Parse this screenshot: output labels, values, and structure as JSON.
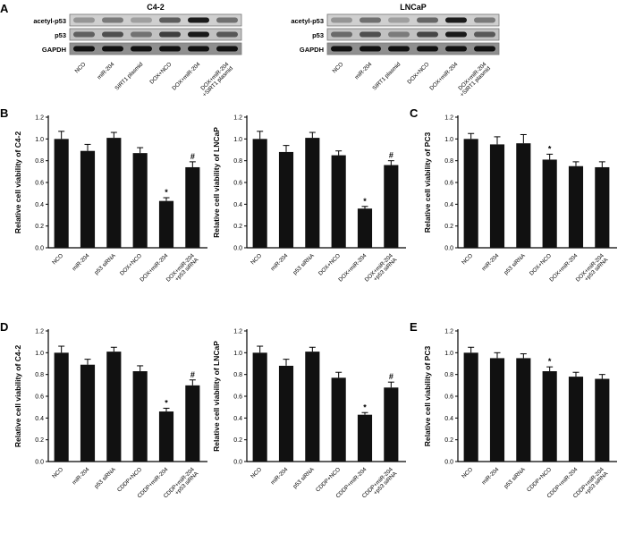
{
  "figure": {
    "panel_labels": [
      "A",
      "B",
      "C",
      "D",
      "E"
    ]
  },
  "blots": [
    {
      "title": "C4-2",
      "rows": [
        {
          "label": "acetyl-p53",
          "bg": "#cfcfcf",
          "bands": [
            0.3,
            0.45,
            0.25,
            0.6,
            0.95,
            0.5
          ]
        },
        {
          "label": "p53",
          "bg": "#c2c2c2",
          "bands": [
            0.55,
            0.65,
            0.45,
            0.75,
            0.95,
            0.6
          ]
        },
        {
          "label": "GAPDH",
          "bg": "#8f8f8f",
          "bands": [
            1,
            1,
            1,
            1,
            1,
            1
          ]
        }
      ],
      "lanes": [
        "NCO",
        "miR-204",
        "SIRT1 plasmid",
        "DOX+NCO",
        "DOX+miR-204",
        "DOX+miR-204\n+SIRT1 plasmid"
      ]
    },
    {
      "title": "LNCaP",
      "rows": [
        {
          "label": "acetyl-p53",
          "bg": "#cfcfcf",
          "bands": [
            0.3,
            0.5,
            0.25,
            0.55,
            0.95,
            0.45
          ]
        },
        {
          "label": "p53",
          "bg": "#c2c2c2",
          "bands": [
            0.5,
            0.65,
            0.4,
            0.7,
            0.95,
            0.6
          ]
        },
        {
          "label": "GAPDH",
          "bg": "#8f8f8f",
          "bands": [
            1,
            1,
            1,
            1,
            1,
            1
          ]
        }
      ],
      "lanes": [
        "NCO",
        "miR-204",
        "SIRT1 plasmid",
        "DOX+NCO",
        "DOX+miR-204",
        "DOX+miR-204\n+SIRT1 plasmid"
      ]
    }
  ],
  "chart_data": [
    {
      "type": "bar",
      "ylabel": "Relative cell viability of C4-2",
      "categories": [
        "NCO",
        "miR-204",
        "p53 siRNA",
        "DOX+NCO",
        "DOX+miR-204",
        "DOX+miR-204\n+p53 siRNA"
      ],
      "values": [
        1.0,
        0.89,
        1.01,
        0.87,
        0.43,
        0.74
      ],
      "errors": [
        0.07,
        0.06,
        0.05,
        0.05,
        0.03,
        0.05
      ],
      "annotations": [
        "",
        "",
        "",
        "",
        "*",
        "#"
      ],
      "ylim": [
        0,
        1.2
      ],
      "ytick_step": 0.2,
      "bar_color": "#111111",
      "grid": false
    },
    {
      "type": "bar",
      "ylabel": "Relative cell viability of LNCaP",
      "categories": [
        "NCO",
        "miR-204",
        "p53 siRNA",
        "DOX+NCO",
        "DOX+miR-204",
        "DOX+miR-204\n+p53 siRNA"
      ],
      "values": [
        1.0,
        0.88,
        1.01,
        0.85,
        0.36,
        0.76
      ],
      "errors": [
        0.07,
        0.06,
        0.05,
        0.04,
        0.02,
        0.04
      ],
      "annotations": [
        "",
        "",
        "",
        "",
        "*",
        "#"
      ],
      "ylim": [
        0,
        1.2
      ],
      "ytick_step": 0.2,
      "bar_color": "#111111",
      "grid": false
    },
    {
      "type": "bar",
      "ylabel": "Relative cell viability of PC3",
      "categories": [
        "NCO",
        "miR-204",
        "p53 siRNA",
        "DOX+NCO",
        "DOX+miR-204",
        "DOX+miR-204\n+p53 siRNA"
      ],
      "values": [
        1.0,
        0.95,
        0.96,
        0.81,
        0.75,
        0.74
      ],
      "errors": [
        0.05,
        0.07,
        0.08,
        0.05,
        0.04,
        0.05
      ],
      "annotations": [
        "",
        "",
        "",
        "*",
        "",
        ""
      ],
      "ylim": [
        0,
        1.2
      ],
      "ytick_step": 0.2,
      "bar_color": "#111111",
      "grid": false
    },
    {
      "type": "bar",
      "ylabel": "Relative cell viability of C4-2",
      "categories": [
        "NCO",
        "miR-204",
        "p53 siRNA",
        "CDDP+NCO",
        "CDDP+miR-204",
        "CDDP+miR-204\n+p53 siRNA"
      ],
      "values": [
        1.0,
        0.89,
        1.01,
        0.83,
        0.46,
        0.7
      ],
      "errors": [
        0.06,
        0.05,
        0.04,
        0.05,
        0.03,
        0.05
      ],
      "annotations": [
        "",
        "",
        "",
        "",
        "*",
        "#"
      ],
      "ylim": [
        0,
        1.2
      ],
      "ytick_step": 0.2,
      "bar_color": "#111111",
      "grid": false
    },
    {
      "type": "bar",
      "ylabel": "Relative cell viability of LNCaP",
      "categories": [
        "NCO",
        "miR-204",
        "p53 siRNA",
        "CDDP+NCO",
        "CDDP+miR-204",
        "CDDP+miR-204\n+p53 siRNA"
      ],
      "values": [
        1.0,
        0.88,
        1.01,
        0.77,
        0.43,
        0.68
      ],
      "errors": [
        0.06,
        0.06,
        0.04,
        0.05,
        0.02,
        0.05
      ],
      "annotations": [
        "",
        "",
        "",
        "",
        "*",
        "#"
      ],
      "ylim": [
        0,
        1.2
      ],
      "ytick_step": 0.2,
      "bar_color": "#111111",
      "grid": false
    },
    {
      "type": "bar",
      "ylabel": "Relative cell viability of PC3",
      "categories": [
        "NCO",
        "miR-204",
        "p53 siRNA",
        "CDDP+NCO",
        "CDDP+miR-204",
        "CDDP+miR-204\n+p53 siRNA"
      ],
      "values": [
        1.0,
        0.95,
        0.95,
        0.83,
        0.78,
        0.76
      ],
      "errors": [
        0.05,
        0.05,
        0.04,
        0.04,
        0.04,
        0.04
      ],
      "annotations": [
        "",
        "",
        "",
        "*",
        "",
        ""
      ],
      "ylim": [
        0,
        1.2
      ],
      "ytick_step": 0.2,
      "bar_color": "#111111",
      "grid": false
    }
  ]
}
